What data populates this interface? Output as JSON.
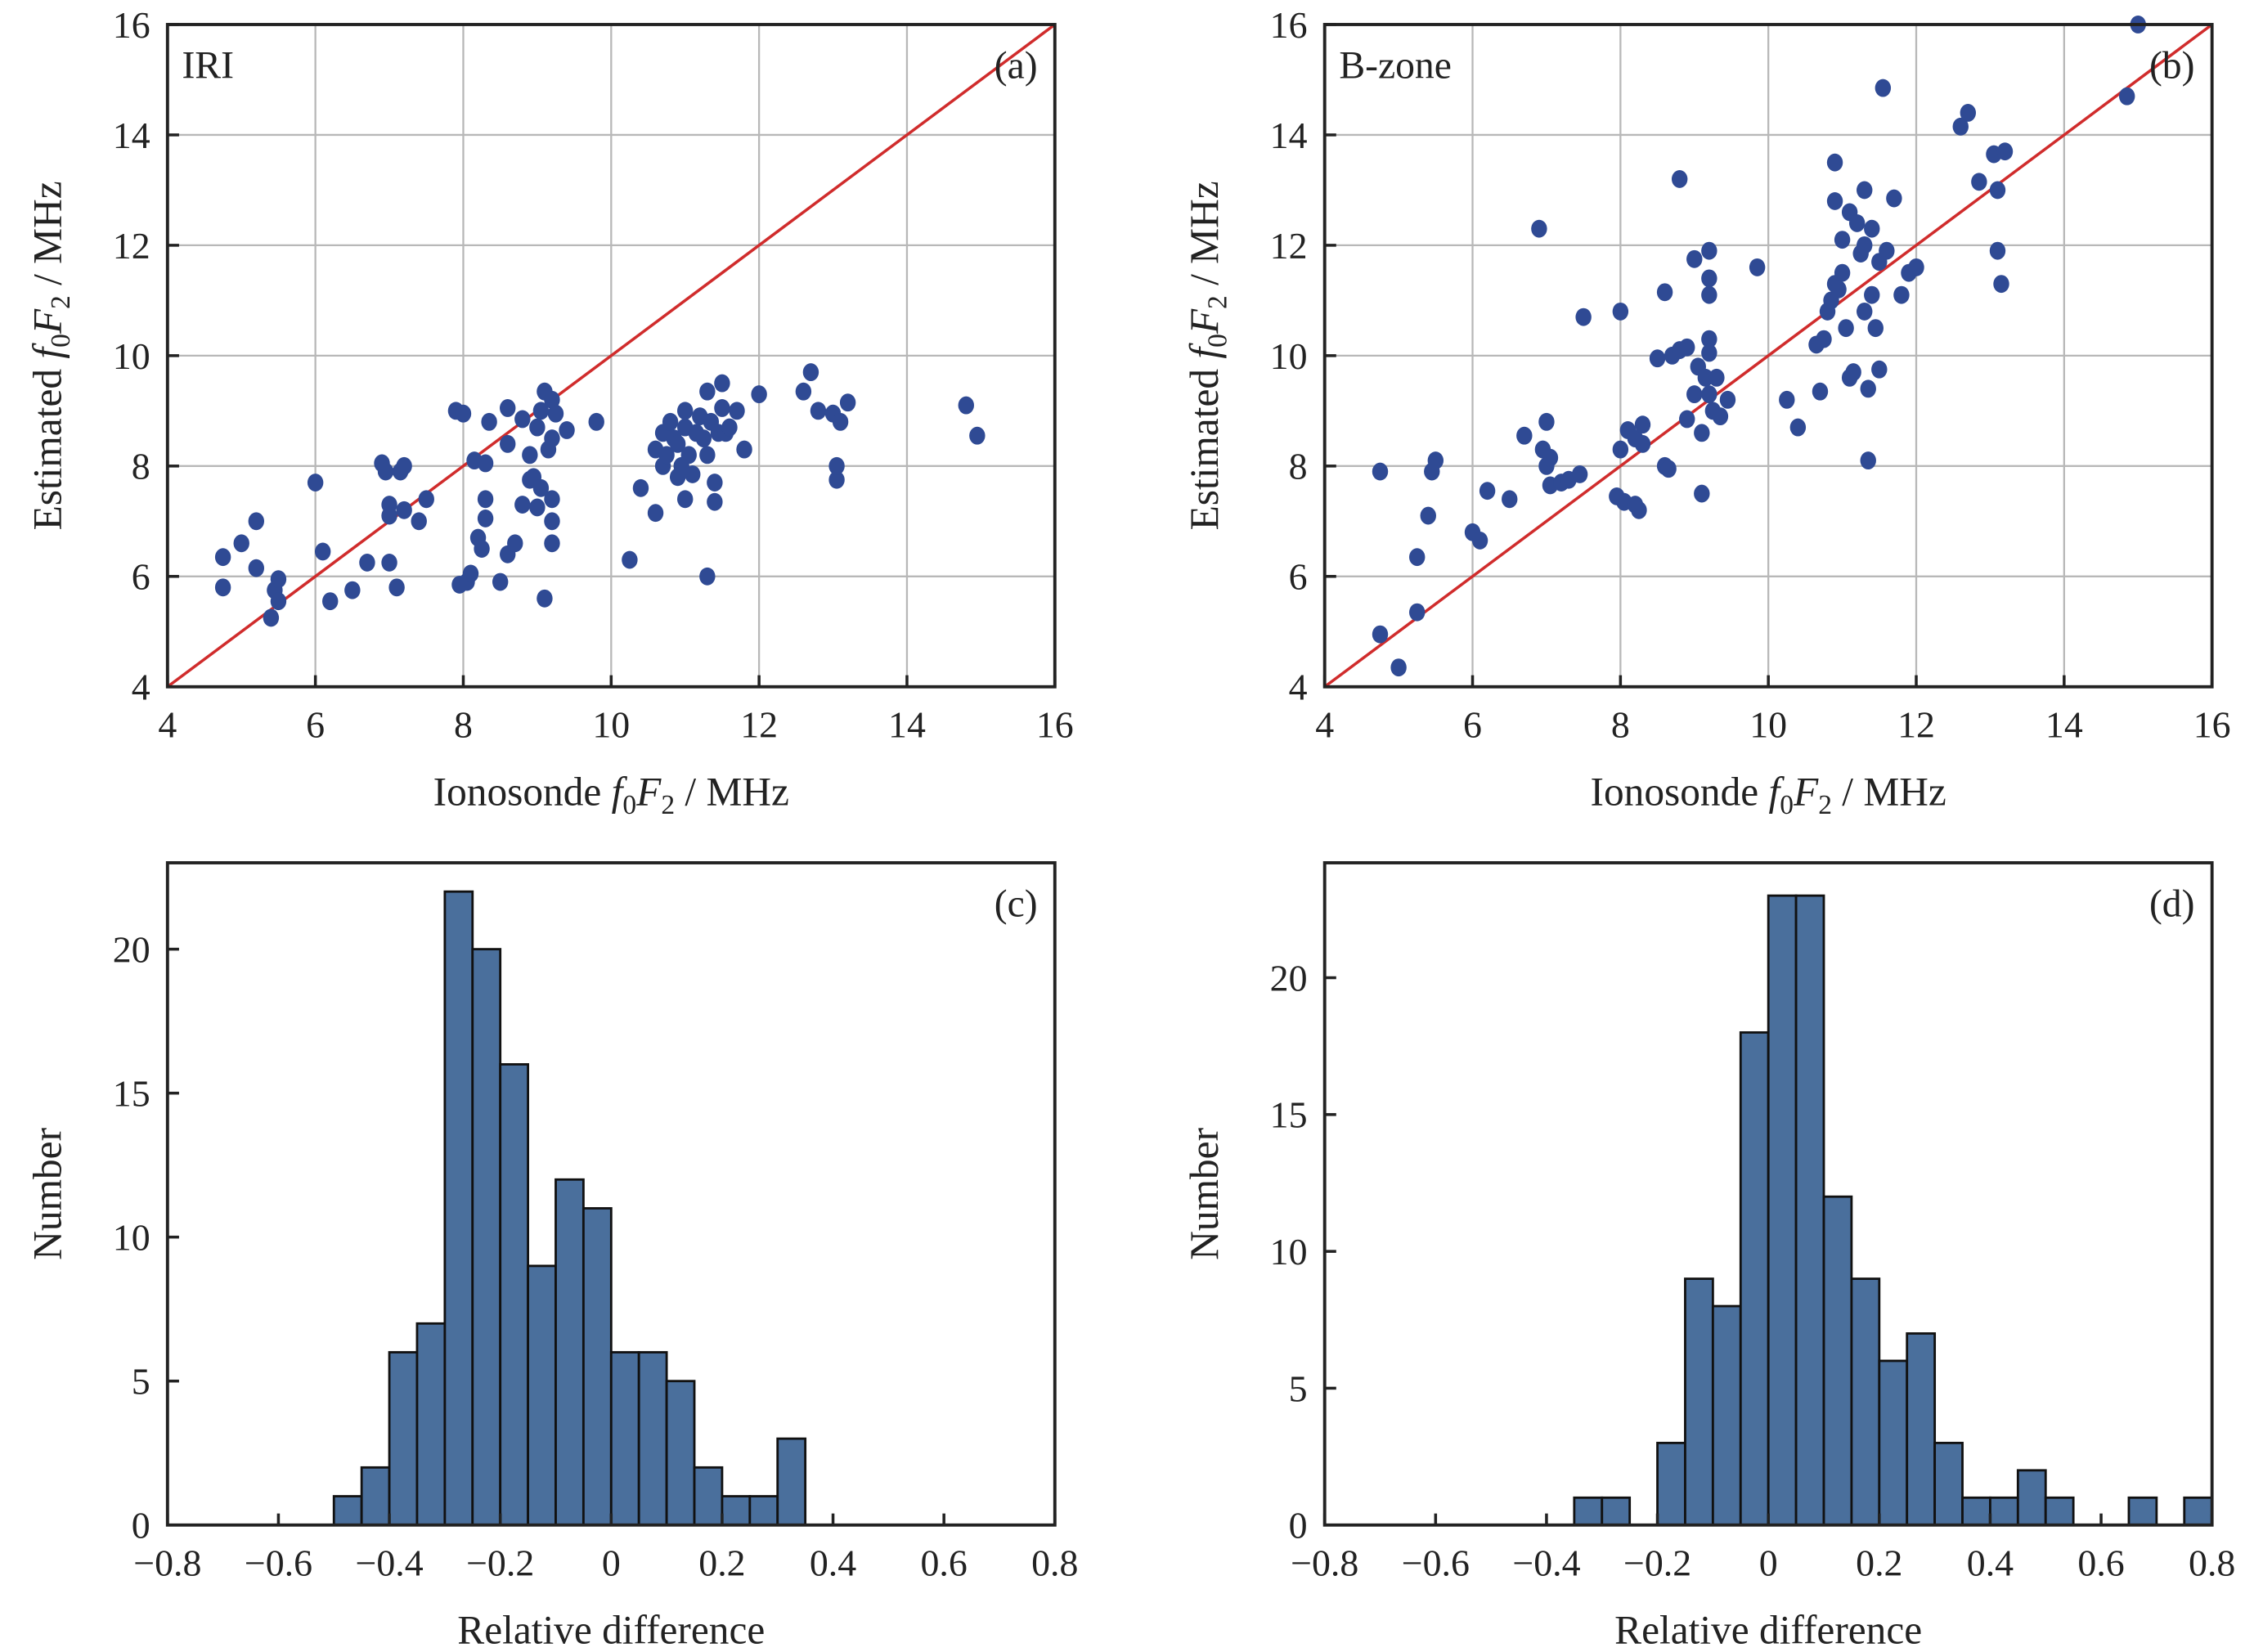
{
  "chart_data": [
    {
      "panel": "(a)",
      "label": "IRI",
      "type": "scatter",
      "xlabel_parts": [
        "Ionosonde ",
        "f",
        "0",
        "F",
        "2",
        " / MHz"
      ],
      "ylabel_parts": [
        "Estimated ",
        "f",
        "0",
        "F",
        "2",
        " / MHz"
      ],
      "xlim": [
        4,
        16
      ],
      "ylim": [
        4,
        16
      ],
      "xticks": [
        4,
        6,
        8,
        10,
        12,
        14,
        16
      ],
      "yticks": [
        4,
        6,
        8,
        10,
        12,
        14,
        16
      ],
      "grid": true,
      "reference_line": "y = x",
      "colors": {
        "points": "#2f4a94",
        "line": "#d02c2c",
        "grid": "#b8b8b8"
      },
      "points": [
        [
          4.75,
          6.35
        ],
        [
          4.75,
          5.8
        ],
        [
          5.0,
          6.6
        ],
        [
          5.2,
          7.0
        ],
        [
          5.2,
          6.15
        ],
        [
          5.4,
          5.25
        ],
        [
          5.45,
          5.75
        ],
        [
          5.5,
          5.95
        ],
        [
          5.5,
          5.55
        ],
        [
          6.0,
          7.7
        ],
        [
          6.1,
          6.45
        ],
        [
          6.2,
          5.55
        ],
        [
          6.5,
          5.75
        ],
        [
          6.7,
          6.25
        ],
        [
          6.9,
          8.05
        ],
        [
          6.95,
          7.9
        ],
        [
          7.0,
          7.3
        ],
        [
          7.0,
          6.25
        ],
        [
          7.0,
          7.1
        ],
        [
          7.1,
          5.8
        ],
        [
          7.15,
          7.9
        ],
        [
          7.2,
          8.0
        ],
        [
          7.2,
          7.2
        ],
        [
          7.4,
          7.0
        ],
        [
          7.5,
          7.4
        ],
        [
          7.9,
          9.0
        ],
        [
          8.0,
          8.95
        ],
        [
          7.95,
          5.85
        ],
        [
          8.05,
          5.9
        ],
        [
          8.1,
          6.05
        ],
        [
          8.15,
          8.1
        ],
        [
          8.2,
          6.7
        ],
        [
          8.25,
          6.5
        ],
        [
          8.3,
          7.4
        ],
        [
          8.3,
          7.05
        ],
        [
          8.3,
          8.05
        ],
        [
          8.35,
          8.8
        ],
        [
          8.5,
          5.9
        ],
        [
          8.6,
          9.05
        ],
        [
          8.6,
          8.4
        ],
        [
          8.6,
          6.4
        ],
        [
          8.7,
          6.6
        ],
        [
          8.8,
          7.3
        ],
        [
          8.8,
          8.85
        ],
        [
          8.9,
          7.75
        ],
        [
          8.9,
          8.2
        ],
        [
          8.95,
          7.8
        ],
        [
          9.0,
          7.25
        ],
        [
          9.0,
          8.7
        ],
        [
          9.05,
          9.0
        ],
        [
          9.05,
          7.6
        ],
        [
          9.1,
          9.35
        ],
        [
          9.1,
          5.6
        ],
        [
          9.15,
          8.3
        ],
        [
          9.2,
          7.4
        ],
        [
          9.2,
          7.0
        ],
        [
          9.2,
          6.6
        ],
        [
          9.2,
          8.5
        ],
        [
          9.2,
          9.2
        ],
        [
          9.25,
          8.95
        ],
        [
          9.4,
          8.65
        ],
        [
          9.8,
          8.8
        ],
        [
          10.25,
          6.3
        ],
        [
          10.4,
          7.6
        ],
        [
          10.6,
          7.15
        ],
        [
          10.6,
          8.3
        ],
        [
          10.7,
          8.0
        ],
        [
          10.7,
          8.6
        ],
        [
          10.75,
          8.2
        ],
        [
          10.8,
          8.8
        ],
        [
          10.85,
          8.5
        ],
        [
          10.9,
          7.8
        ],
        [
          10.9,
          8.4
        ],
        [
          10.95,
          8.0
        ],
        [
          11.0,
          9.0
        ],
        [
          11.0,
          8.7
        ],
        [
          11.0,
          7.4
        ],
        [
          11.05,
          8.2
        ],
        [
          11.1,
          7.85
        ],
        [
          11.15,
          8.6
        ],
        [
          11.2,
          8.9
        ],
        [
          11.25,
          8.5
        ],
        [
          11.3,
          6.0
        ],
        [
          11.3,
          9.35
        ],
        [
          11.3,
          8.2
        ],
        [
          11.35,
          8.8
        ],
        [
          11.4,
          7.7
        ],
        [
          11.4,
          7.35
        ],
        [
          11.45,
          8.6
        ],
        [
          11.5,
          9.5
        ],
        [
          11.5,
          9.05
        ],
        [
          11.55,
          8.6
        ],
        [
          11.6,
          8.7
        ],
        [
          11.7,
          9.0
        ],
        [
          11.8,
          8.3
        ],
        [
          12.0,
          9.3
        ],
        [
          12.6,
          9.35
        ],
        [
          12.7,
          9.7
        ],
        [
          12.8,
          9.0
        ],
        [
          13.0,
          8.95
        ],
        [
          13.05,
          7.75
        ],
        [
          13.05,
          8.0
        ],
        [
          13.1,
          8.8
        ],
        [
          13.2,
          9.15
        ],
        [
          14.8,
          9.1
        ],
        [
          14.95,
          8.55
        ]
      ]
    },
    {
      "panel": "(b)",
      "label": "B-zone",
      "type": "scatter",
      "xlabel_parts": [
        "Ionosonde ",
        "f",
        "0",
        "F",
        "2",
        " / MHz"
      ],
      "ylabel_parts": [
        "Estimated ",
        "f",
        "0",
        "F",
        "2",
        " / MHz"
      ],
      "xlim": [
        4,
        16
      ],
      "ylim": [
        4,
        16
      ],
      "xticks": [
        4,
        6,
        8,
        10,
        12,
        14,
        16
      ],
      "yticks": [
        4,
        6,
        8,
        10,
        12,
        14,
        16
      ],
      "grid": true,
      "reference_line": "y = x",
      "colors": {
        "points": "#2f4a94",
        "line": "#d02c2c",
        "grid": "#b8b8b8"
      },
      "points": [
        [
          4.75,
          7.9
        ],
        [
          4.75,
          4.95
        ],
        [
          5.0,
          4.35
        ],
        [
          5.25,
          5.35
        ],
        [
          5.25,
          6.35
        ],
        [
          5.4,
          7.1
        ],
        [
          5.45,
          7.9
        ],
        [
          5.5,
          8.1
        ],
        [
          6.0,
          6.8
        ],
        [
          6.1,
          6.65
        ],
        [
          6.2,
          7.55
        ],
        [
          6.5,
          7.4
        ],
        [
          6.7,
          8.55
        ],
        [
          6.9,
          12.3
        ],
        [
          6.95,
          8.3
        ],
        [
          7.0,
          8.8
        ],
        [
          7.0,
          8.0
        ],
        [
          7.05,
          8.15
        ],
        [
          7.05,
          7.65
        ],
        [
          7.2,
          7.7
        ],
        [
          7.3,
          7.75
        ],
        [
          7.45,
          7.85
        ],
        [
          7.5,
          10.7
        ],
        [
          7.95,
          7.45
        ],
        [
          8.0,
          10.8
        ],
        [
          8.0,
          8.3
        ],
        [
          8.05,
          7.35
        ],
        [
          8.1,
          8.65
        ],
        [
          8.2,
          8.5
        ],
        [
          8.2,
          7.3
        ],
        [
          8.25,
          7.2
        ],
        [
          8.3,
          8.75
        ],
        [
          8.3,
          8.4
        ],
        [
          8.5,
          9.95
        ],
        [
          8.6,
          11.15
        ],
        [
          8.6,
          8.0
        ],
        [
          8.65,
          7.95
        ],
        [
          8.7,
          10.0
        ],
        [
          8.8,
          13.2
        ],
        [
          8.8,
          10.1
        ],
        [
          8.9,
          10.15
        ],
        [
          8.9,
          8.85
        ],
        [
          9.0,
          11.75
        ],
        [
          9.0,
          9.3
        ],
        [
          9.05,
          9.8
        ],
        [
          9.1,
          8.6
        ],
        [
          9.1,
          7.5
        ],
        [
          9.15,
          9.6
        ],
        [
          9.2,
          11.9
        ],
        [
          9.2,
          11.4
        ],
        [
          9.2,
          11.1
        ],
        [
          9.2,
          10.3
        ],
        [
          9.2,
          10.05
        ],
        [
          9.2,
          9.3
        ],
        [
          9.25,
          9.0
        ],
        [
          9.3,
          9.6
        ],
        [
          9.35,
          8.9
        ],
        [
          9.45,
          9.2
        ],
        [
          9.85,
          11.6
        ],
        [
          10.25,
          9.2
        ],
        [
          10.4,
          8.7
        ],
        [
          10.65,
          10.2
        ],
        [
          10.7,
          9.35
        ],
        [
          10.75,
          10.3
        ],
        [
          10.8,
          10.8
        ],
        [
          10.85,
          11.0
        ],
        [
          10.9,
          12.8
        ],
        [
          10.9,
          13.5
        ],
        [
          10.9,
          11.3
        ],
        [
          10.95,
          11.2
        ],
        [
          11.0,
          12.1
        ],
        [
          11.0,
          11.5
        ],
        [
          11.05,
          10.5
        ],
        [
          11.1,
          12.6
        ],
        [
          11.1,
          9.6
        ],
        [
          11.15,
          9.7
        ],
        [
          11.2,
          12.4
        ],
        [
          11.25,
          11.85
        ],
        [
          11.3,
          13.0
        ],
        [
          11.3,
          12.0
        ],
        [
          11.3,
          10.8
        ],
        [
          11.35,
          9.4
        ],
        [
          11.35,
          8.1
        ],
        [
          11.4,
          11.1
        ],
        [
          11.4,
          12.3
        ],
        [
          11.45,
          10.5
        ],
        [
          11.5,
          11.7
        ],
        [
          11.5,
          9.75
        ],
        [
          11.55,
          14.85
        ],
        [
          11.6,
          11.9
        ],
        [
          11.7,
          12.85
        ],
        [
          11.8,
          11.1
        ],
        [
          11.9,
          11.5
        ],
        [
          12.0,
          11.6
        ],
        [
          12.6,
          14.15
        ],
        [
          12.7,
          14.4
        ],
        [
          12.85,
          13.15
        ],
        [
          13.05,
          13.65
        ],
        [
          13.1,
          13.0
        ],
        [
          13.1,
          11.9
        ],
        [
          13.15,
          11.3
        ],
        [
          13.2,
          13.7
        ],
        [
          14.85,
          14.7
        ],
        [
          15.0,
          16.0
        ]
      ]
    },
    {
      "panel": "(c)",
      "type": "bar",
      "xlabel": "Relative difference",
      "ylabel": "Number",
      "xlim": [
        -0.8,
        0.8
      ],
      "ylim": [
        0,
        23
      ],
      "xticks": [
        "−0.8",
        "−0.6",
        "−0.4",
        "−0.2",
        "0",
        "0.2",
        "0.4",
        "0.6",
        "0.8"
      ],
      "yticks": [
        0,
        5,
        10,
        15,
        20
      ],
      "grid": false,
      "bin_width": 0.05,
      "bin_starts": [
        -0.5,
        -0.45,
        -0.4,
        -0.35,
        -0.3,
        -0.25,
        -0.2,
        -0.15,
        -0.1,
        -0.05,
        0,
        0.05,
        0.1,
        0.15,
        0.2,
        0.25,
        0.3
      ],
      "values": [
        1,
        2,
        6,
        7,
        22,
        20,
        16,
        9,
        12,
        11,
        6,
        6,
        5,
        2,
        1,
        1,
        3
      ],
      "colors": {
        "bars": "#4a6f9c",
        "edge": "#111111"
      }
    },
    {
      "panel": "(d)",
      "type": "bar",
      "xlabel": "Relative difference",
      "ylabel": "Number",
      "xlim": [
        -0.8,
        0.8
      ],
      "ylim": [
        0,
        24.2
      ],
      "xticks": [
        "−0.8",
        "−0.6",
        "−0.4",
        "−0.2",
        "0",
        "0.2",
        "0.4",
        "0.6",
        "0.8"
      ],
      "yticks": [
        0,
        5,
        10,
        15,
        20
      ],
      "grid": false,
      "bin_width": 0.05,
      "bin_starts": [
        -0.35,
        -0.3,
        -0.25,
        -0.2,
        -0.15,
        -0.1,
        -0.05,
        0,
        0.05,
        0.1,
        0.15,
        0.2,
        0.25,
        0.3,
        0.35,
        0.4,
        0.45,
        0.5,
        0.55,
        0.6,
        0.65,
        0.7,
        0.75
      ],
      "values": [
        1,
        1,
        0,
        3,
        9,
        8,
        18,
        23,
        23,
        12,
        9,
        6,
        7,
        3,
        1,
        1,
        2,
        1,
        0,
        0,
        1,
        0,
        1
      ],
      "colors": {
        "bars": "#4a6f9c",
        "edge": "#111111"
      }
    }
  ]
}
